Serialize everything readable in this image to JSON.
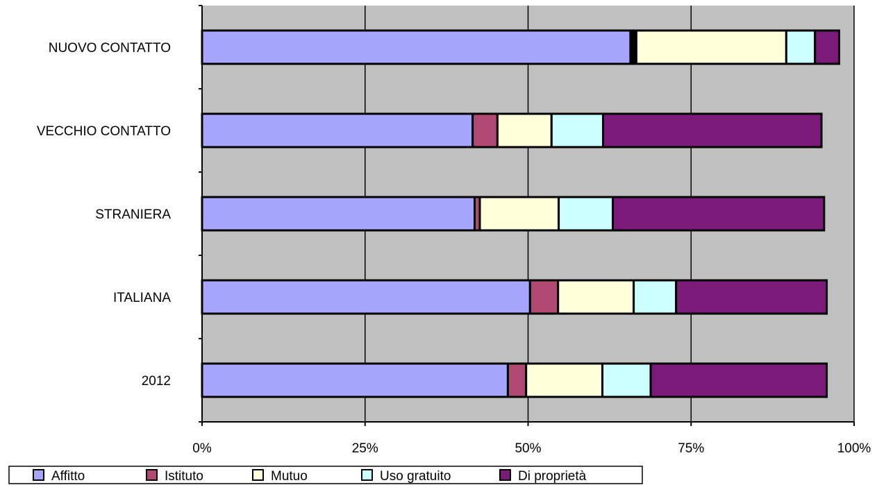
{
  "chart_data": {
    "type": "bar",
    "orientation": "horizontal",
    "stacked": true,
    "categories": [
      "NUOVO CONTATTO",
      "VECCHIO CONTATTO",
      "STRANIERA",
      "ITALIANA",
      "2012"
    ],
    "x_ticks": [
      "0%",
      "25%",
      "50%",
      "75%",
      "100%"
    ],
    "xlim": [
      0,
      100
    ],
    "grid": true,
    "legend_position": "bottom",
    "series": [
      {
        "name": "Affitto",
        "color": "#a6a6ff",
        "values": [
          65.7,
          41.5,
          41.8,
          50.3,
          46.9
        ]
      },
      {
        "name": "",
        "color": "#000000",
        "values": [
          0.9,
          0,
          0,
          0,
          0
        ]
      },
      {
        "name": "Istituto",
        "color": "#b04a72",
        "values": [
          0,
          3.8,
          0.8,
          4.3,
          2.8
        ]
      },
      {
        "name": "Mutuo",
        "color": "#ffffd9",
        "values": [
          23.0,
          8.3,
          12.1,
          11.6,
          11.7
        ]
      },
      {
        "name": "Uso gratuito",
        "color": "#ccffff",
        "values": [
          4.4,
          7.9,
          8.3,
          6.5,
          7.4
        ]
      },
      {
        "name": "Di proprietà",
        "color": "#7b1a78",
        "values": [
          3.7,
          33.5,
          32.4,
          23.1,
          27.0
        ]
      }
    ],
    "legend": [
      {
        "label": "Affitto",
        "color": "#a6a6ff"
      },
      {
        "label": "Istituto",
        "color": "#b04a72"
      },
      {
        "label": "Mutuo",
        "color": "#ffffd9"
      },
      {
        "label": "Uso gratuito",
        "color": "#ccffff"
      },
      {
        "label": "Di proprietà",
        "color": "#7b1a78"
      }
    ],
    "plot_background": "#c0c0c0"
  }
}
